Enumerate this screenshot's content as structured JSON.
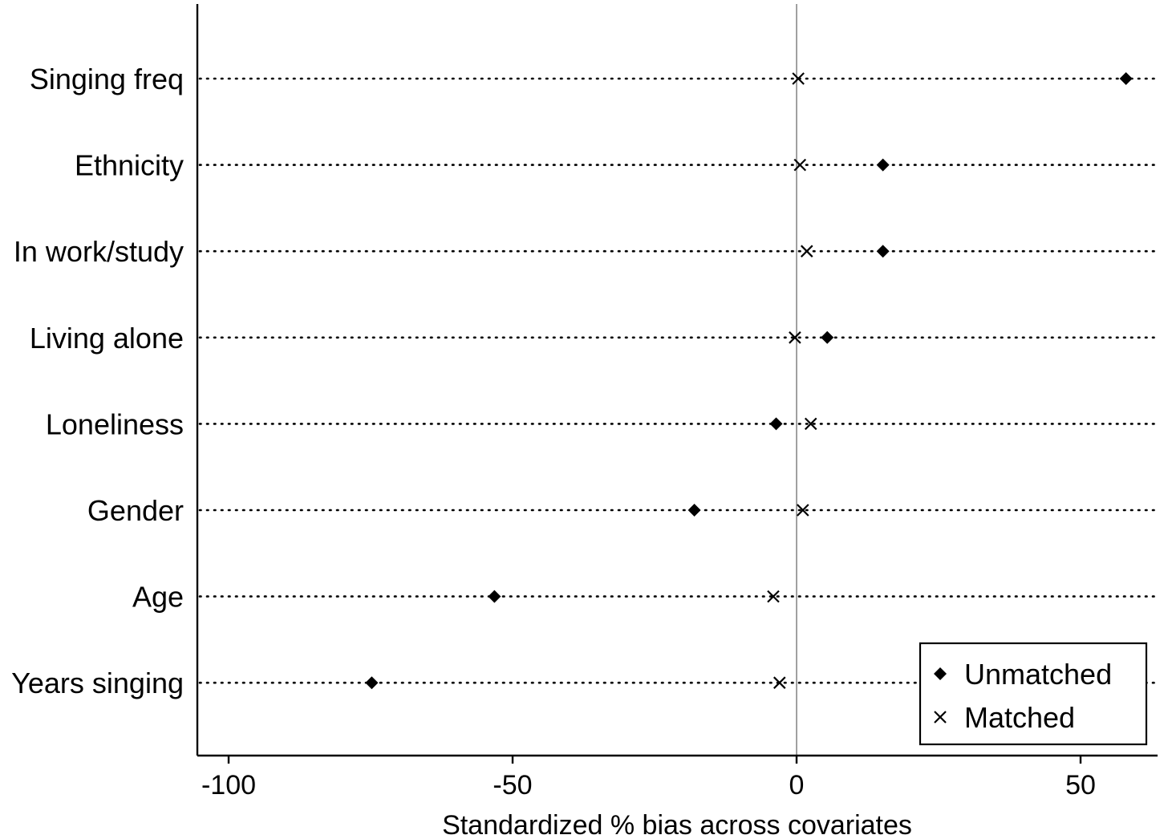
{
  "chart_data": {
    "type": "scatter",
    "orientation": "horizontal-dot-plot",
    "title": "",
    "xlabel": "Standardized % bias across covariates",
    "ylabel": "",
    "xlim": [
      -105,
      64
    ],
    "xticks": [
      -100,
      -50,
      0,
      50
    ],
    "reference_line_x": 0,
    "grid": "dotted horizontal line per category",
    "legend_position": "bottom-right",
    "categories": [
      "Singing freq",
      "Ethnicity",
      "In work/study",
      "Living alone",
      "Loneliness",
      "Gender",
      "Age",
      "Years singing"
    ],
    "series": [
      {
        "name": "Unmatched",
        "marker": "diamond",
        "values": [
          58.0,
          15.2,
          15.2,
          5.4,
          -3.6,
          -18.0,
          -53.2,
          -74.8
        ]
      },
      {
        "name": "Matched",
        "marker": "x",
        "values": [
          0.3,
          0.6,
          1.8,
          -0.3,
          2.5,
          1.1,
          -4.1,
          -3.0
        ]
      }
    ],
    "colors": {
      "marker": "#000000",
      "axis": "#000000",
      "reference_line": "#a0a0a0"
    }
  }
}
